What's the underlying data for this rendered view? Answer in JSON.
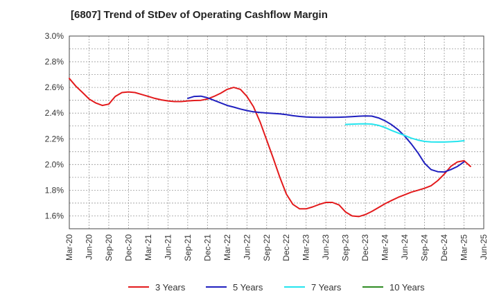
{
  "chart_data": {
    "type": "line",
    "title": "[6807]  Trend of StDev of Operating Cashflow Margin",
    "xlabel": "",
    "ylabel": "",
    "x_ticks": [
      "Mar-20",
      "Jun-20",
      "Sep-20",
      "Dec-20",
      "Mar-21",
      "Jun-21",
      "Sep-21",
      "Dec-21",
      "Mar-22",
      "Jun-22",
      "Sep-22",
      "Dec-22",
      "Mar-23",
      "Jun-23",
      "Sep-23",
      "Dec-23",
      "Mar-24",
      "Jun-24",
      "Sep-24",
      "Dec-24",
      "Mar-25",
      "Jun-25"
    ],
    "y_ticks": [
      "1.6%",
      "1.8%",
      "2.0%",
      "2.2%",
      "2.4%",
      "2.6%",
      "2.8%",
      "3.0%"
    ],
    "ylim": [
      1.5,
      3.0
    ],
    "grid": true,
    "legend_position": "bottom",
    "series": [
      {
        "name": "3 Years",
        "color": "#e31a1c",
        "points": [
          [
            0,
            2.67
          ],
          [
            0.33,
            2.61
          ],
          [
            0.67,
            2.56
          ],
          [
            1,
            2.51
          ],
          [
            1.33,
            2.48
          ],
          [
            1.67,
            2.46
          ],
          [
            2,
            2.47
          ],
          [
            2.33,
            2.53
          ],
          [
            2.67,
            2.56
          ],
          [
            3,
            2.565
          ],
          [
            3.33,
            2.56
          ],
          [
            3.67,
            2.545
          ],
          [
            4,
            2.53
          ],
          [
            4.33,
            2.515
          ],
          [
            4.67,
            2.503
          ],
          [
            5,
            2.495
          ],
          [
            5.33,
            2.49
          ],
          [
            5.67,
            2.49
          ],
          [
            6,
            2.495
          ],
          [
            6.33,
            2.498
          ],
          [
            6.67,
            2.5
          ],
          [
            7,
            2.51
          ],
          [
            7.33,
            2.53
          ],
          [
            7.67,
            2.555
          ],
          [
            8,
            2.585
          ],
          [
            8.33,
            2.6
          ],
          [
            8.67,
            2.585
          ],
          [
            9,
            2.53
          ],
          [
            9.33,
            2.45
          ],
          [
            9.67,
            2.33
          ],
          [
            10,
            2.19
          ],
          [
            10.33,
            2.05
          ],
          [
            10.67,
            1.9
          ],
          [
            11,
            1.77
          ],
          [
            11.33,
            1.69
          ],
          [
            11.67,
            1.655
          ],
          [
            12,
            1.655
          ],
          [
            12.33,
            1.67
          ],
          [
            12.67,
            1.69
          ],
          [
            13,
            1.705
          ],
          [
            13.33,
            1.705
          ],
          [
            13.67,
            1.685
          ],
          [
            14,
            1.63
          ],
          [
            14.33,
            1.6
          ],
          [
            14.67,
            1.595
          ],
          [
            15,
            1.61
          ],
          [
            15.33,
            1.635
          ],
          [
            15.67,
            1.665
          ],
          [
            16,
            1.695
          ],
          [
            16.33,
            1.72
          ],
          [
            16.67,
            1.745
          ],
          [
            17,
            1.765
          ],
          [
            17.33,
            1.785
          ],
          [
            17.67,
            1.8
          ],
          [
            18,
            1.815
          ],
          [
            18.33,
            1.835
          ],
          [
            18.67,
            1.875
          ],
          [
            19,
            1.925
          ],
          [
            19.33,
            1.985
          ],
          [
            19.67,
            2.02
          ],
          [
            20,
            2.03
          ],
          [
            20.33,
            1.985
          ]
        ]
      },
      {
        "name": "5 Years",
        "color": "#1f1fbf",
        "points": [
          [
            6,
            2.515
          ],
          [
            6.33,
            2.53
          ],
          [
            6.67,
            2.532
          ],
          [
            7,
            2.52
          ],
          [
            7.33,
            2.5
          ],
          [
            7.67,
            2.48
          ],
          [
            8,
            2.46
          ],
          [
            8.33,
            2.447
          ],
          [
            8.67,
            2.432
          ],
          [
            9,
            2.42
          ],
          [
            9.33,
            2.41
          ],
          [
            9.67,
            2.405
          ],
          [
            10,
            2.401
          ],
          [
            10.33,
            2.398
          ],
          [
            10.67,
            2.394
          ],
          [
            11,
            2.388
          ],
          [
            11.33,
            2.38
          ],
          [
            11.67,
            2.374
          ],
          [
            12,
            2.37
          ],
          [
            12.33,
            2.368
          ],
          [
            12.67,
            2.367
          ],
          [
            13,
            2.367
          ],
          [
            13.33,
            2.367
          ],
          [
            13.67,
            2.368
          ],
          [
            14,
            2.37
          ],
          [
            14.33,
            2.373
          ],
          [
            14.67,
            2.376
          ],
          [
            15,
            2.378
          ],
          [
            15.33,
            2.377
          ],
          [
            15.67,
            2.363
          ],
          [
            16,
            2.34
          ],
          [
            16.33,
            2.31
          ],
          [
            16.67,
            2.27
          ],
          [
            17,
            2.22
          ],
          [
            17.33,
            2.16
          ],
          [
            17.67,
            2.09
          ],
          [
            18,
            2.01
          ],
          [
            18.33,
            1.96
          ],
          [
            18.67,
            1.944
          ],
          [
            19,
            1.942
          ],
          [
            19.33,
            1.96
          ],
          [
            19.67,
            1.985
          ],
          [
            20,
            2.02
          ]
        ]
      },
      {
        "name": "7 Years",
        "color": "#22e4ee",
        "points": [
          [
            14,
            2.312
          ],
          [
            14.33,
            2.314
          ],
          [
            14.67,
            2.316
          ],
          [
            15,
            2.317
          ],
          [
            15.33,
            2.315
          ],
          [
            15.67,
            2.305
          ],
          [
            16,
            2.288
          ],
          [
            16.33,
            2.265
          ],
          [
            16.67,
            2.245
          ],
          [
            17,
            2.225
          ],
          [
            17.33,
            2.205
          ],
          [
            17.67,
            2.19
          ],
          [
            18,
            2.18
          ],
          [
            18.33,
            2.176
          ],
          [
            18.67,
            2.175
          ],
          [
            19,
            2.175
          ],
          [
            19.33,
            2.177
          ],
          [
            19.67,
            2.18
          ],
          [
            20,
            2.185
          ]
        ]
      },
      {
        "name": "10 Years",
        "color": "#2e8b22",
        "points": []
      }
    ]
  }
}
